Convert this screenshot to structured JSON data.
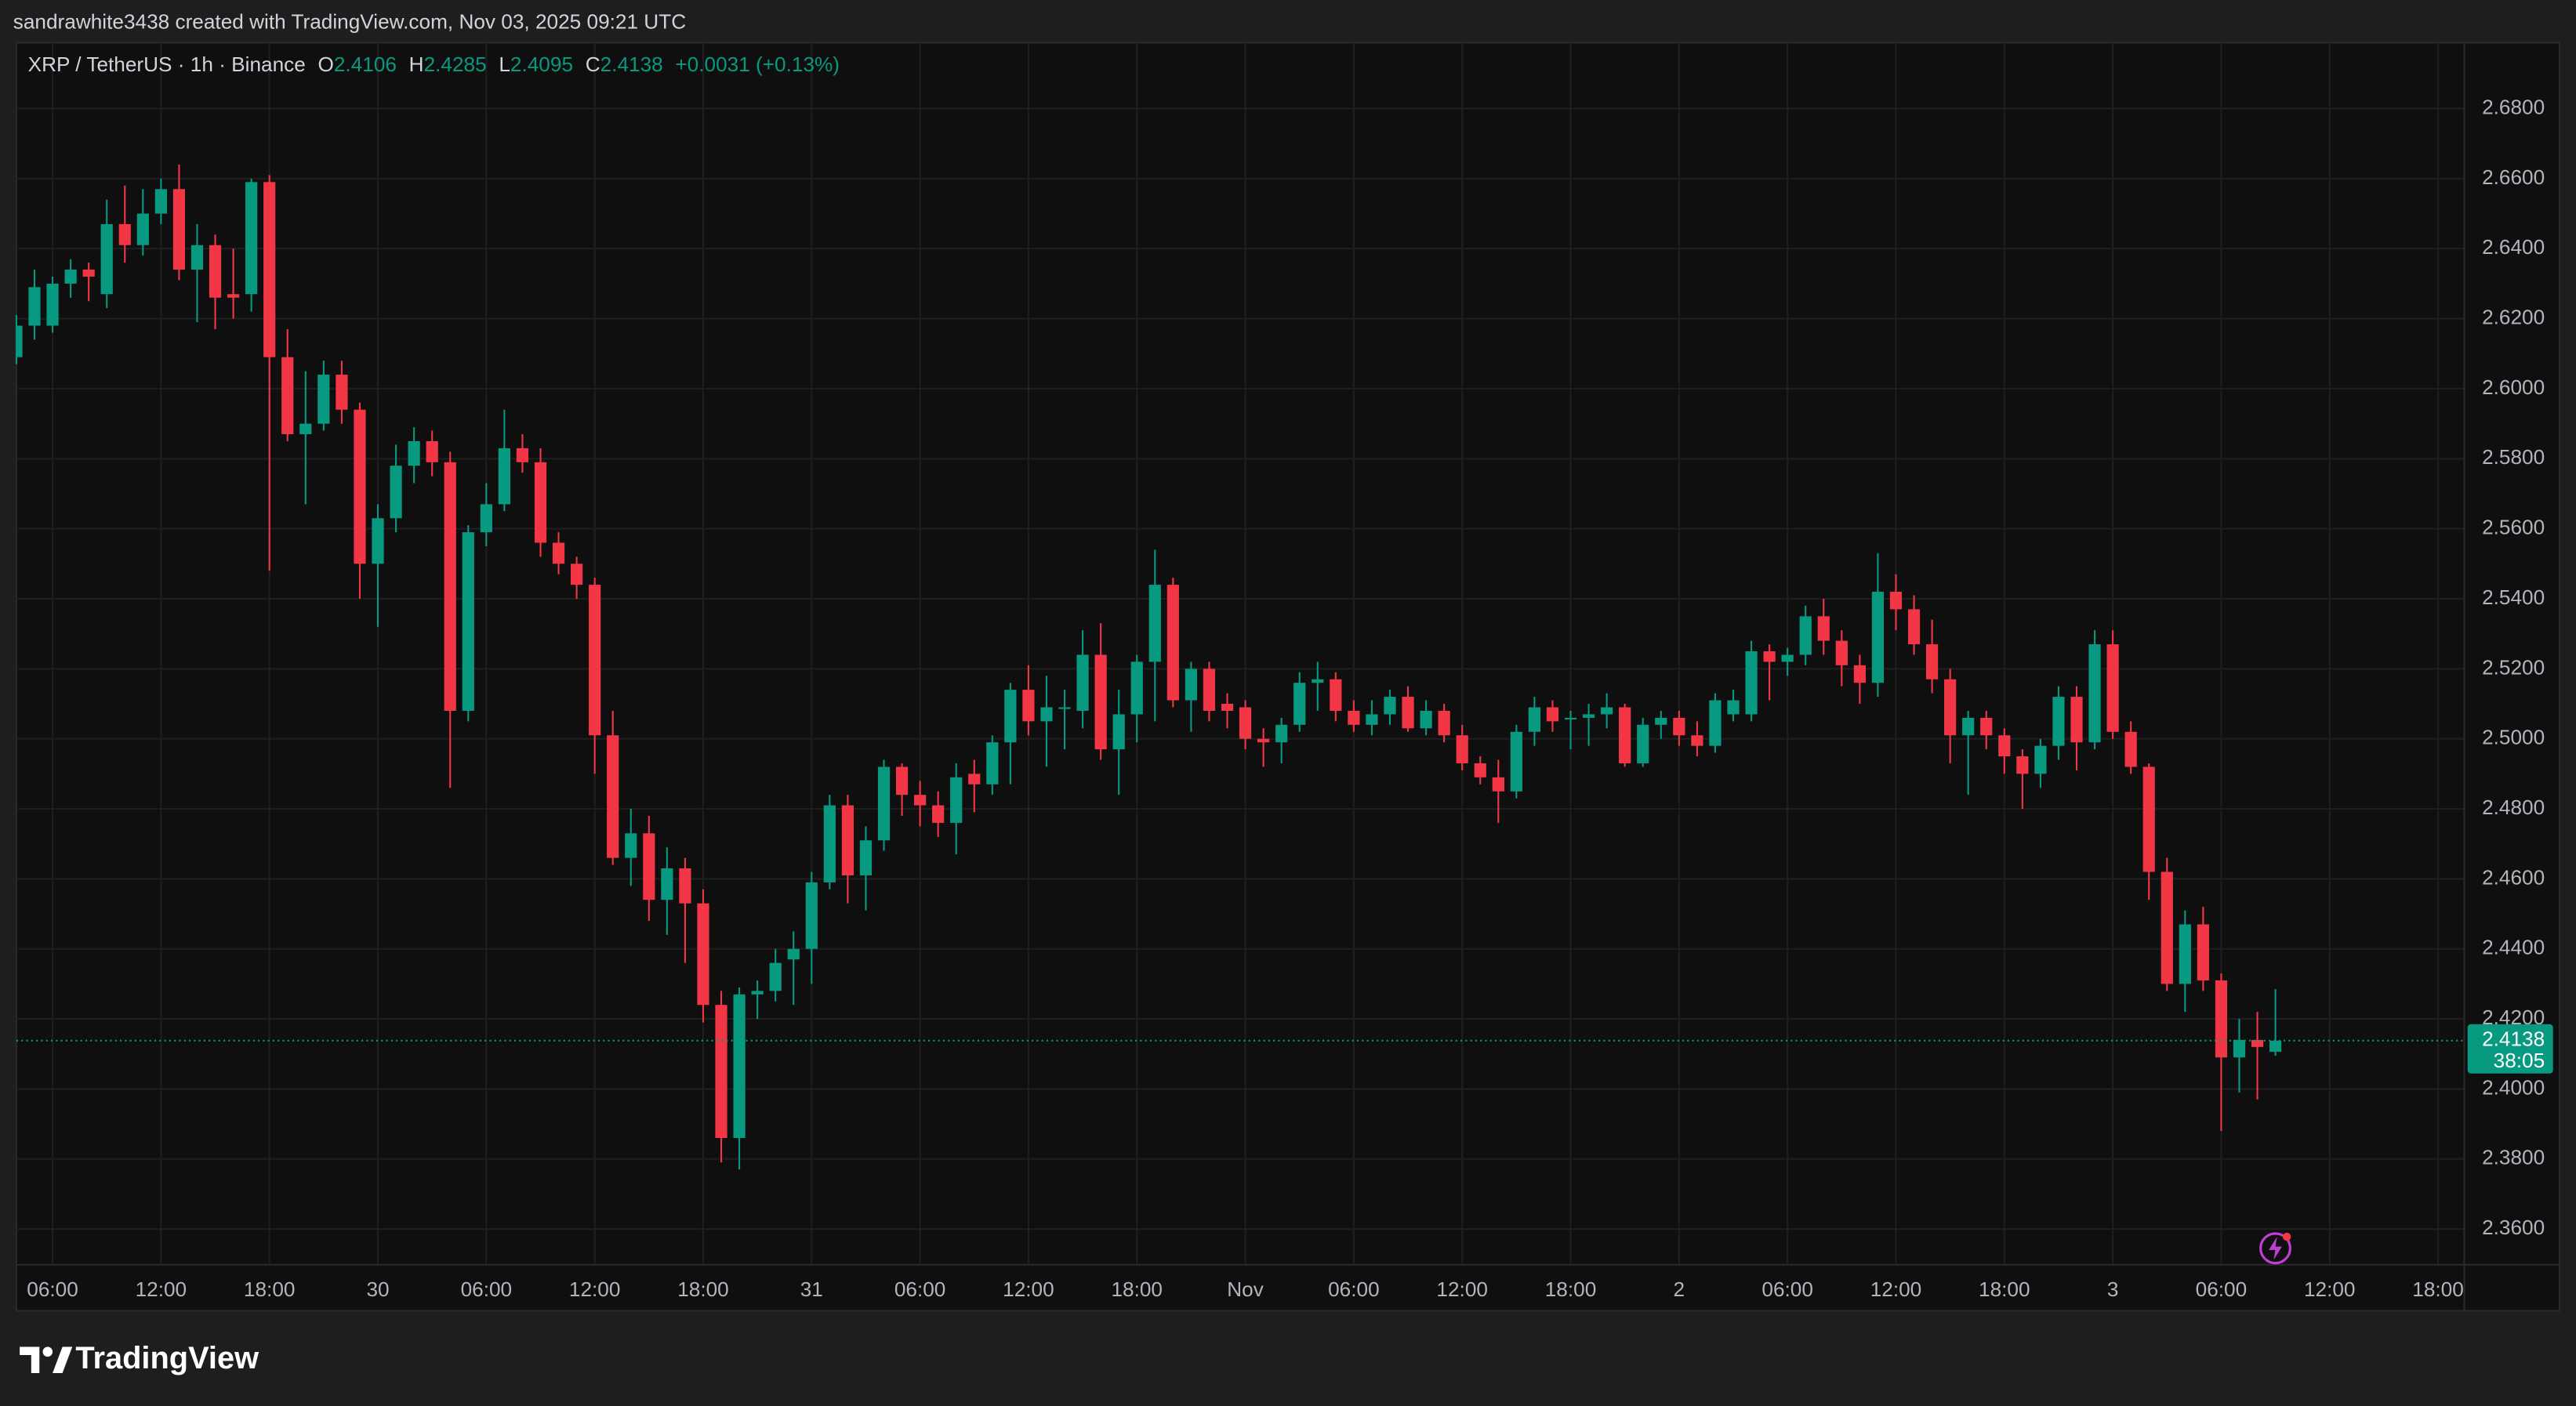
{
  "header": {
    "credit": "sandrawhite3438 created with TradingView.com, Nov 03, 2025 09:21 UTC",
    "logo": "TradingView"
  },
  "chart_data": {
    "type": "candlestick",
    "symbol": "XRP / TetherUS · 1h · Binance",
    "ohlc_keys": [
      "O",
      "H",
      "L",
      "C"
    ],
    "change": "+0.0031 (+0.13%)",
    "countdown": "38:05",
    "up_color": "#089981",
    "down_color": "#f23645",
    "grid": true,
    "x": [
      0,
      1,
      2,
      3,
      4,
      5,
      6,
      7,
      8,
      9,
      10,
      11,
      12,
      13,
      14,
      15,
      16,
      17,
      18,
      19,
      20,
      21,
      22,
      23,
      24,
      25,
      26,
      27,
      28,
      29,
      30,
      31,
      32,
      33,
      34,
      35,
      36,
      37,
      38,
      39,
      40,
      41,
      42,
      43,
      44,
      45,
      46,
      47,
      48,
      49,
      50,
      51,
      52,
      53,
      54,
      55,
      56,
      57,
      58,
      59,
      60,
      61,
      62,
      63,
      64,
      65,
      66,
      67,
      68,
      69,
      70,
      71,
      72,
      73,
      74,
      75,
      76,
      77,
      78,
      79,
      80,
      81,
      82,
      83,
      84,
      85,
      86,
      87,
      88,
      89,
      90,
      91,
      92,
      93,
      94,
      95,
      96,
      97,
      98,
      99,
      100,
      101,
      102,
      103,
      104,
      105,
      106,
      107,
      108,
      109,
      110,
      111,
      112,
      113,
      114,
      115,
      116,
      117,
      118,
      119,
      120,
      121,
      122,
      123,
      124,
      125
    ],
    "open": [
      2.609,
      2.618,
      2.618,
      2.63,
      2.634,
      2.627,
      2.647,
      2.641,
      2.65,
      2.657,
      2.634,
      2.641,
      2.627,
      2.627,
      2.659,
      2.609,
      2.587,
      2.59,
      2.604,
      2.594,
      2.55,
      2.563,
      2.578,
      2.585,
      2.579,
      2.508,
      2.559,
      2.567,
      2.583,
      2.579,
      2.556,
      2.55,
      2.544,
      2.501,
      2.466,
      2.473,
      2.454,
      2.463,
      2.453,
      2.424,
      2.386,
      2.427,
      2.428,
      2.437,
      2.44,
      2.459,
      2.481,
      2.461,
      2.471,
      2.492,
      2.484,
      2.481,
      2.476,
      2.49,
      2.487,
      2.499,
      2.514,
      2.505,
      2.509,
      2.508,
      2.524,
      2.497,
      2.507,
      2.522,
      2.544,
      2.511,
      2.52,
      2.51,
      2.509,
      2.5,
      2.499,
      2.504,
      2.516,
      2.517,
      2.508,
      2.504,
      2.507,
      2.512,
      2.503,
      2.508,
      2.501,
      2.493,
      2.489,
      2.485,
      2.502,
      2.509,
      2.506,
      2.506,
      2.507,
      2.509,
      2.493,
      2.504,
      2.506,
      2.501,
      2.498,
      2.507,
      2.507,
      2.525,
      2.522,
      2.524,
      2.535,
      2.528,
      2.521,
      2.516,
      2.542,
      2.537,
      2.527,
      2.517,
      2.501,
      2.506,
      2.501,
      2.495,
      2.49,
      2.498,
      2.512,
      2.499,
      2.527,
      2.502,
      2.492,
      2.462,
      2.43,
      2.447,
      2.431,
      2.409,
      2.414,
      2.4106
    ],
    "high": [
      2.621,
      2.634,
      2.632,
      2.637,
      2.636,
      2.654,
      2.658,
      2.657,
      2.66,
      2.664,
      2.647,
      2.644,
      2.64,
      2.66,
      2.661,
      2.617,
      2.605,
      2.608,
      2.608,
      2.596,
      2.567,
      2.584,
      2.589,
      2.588,
      2.582,
      2.561,
      2.573,
      2.594,
      2.587,
      2.583,
      2.559,
      2.552,
      2.546,
      2.508,
      2.48,
      2.478,
      2.469,
      2.466,
      2.457,
      2.428,
      2.429,
      2.431,
      2.44,
      2.445,
      2.462,
      2.484,
      2.484,
      2.475,
      2.494,
      2.493,
      2.488,
      2.485,
      2.493,
      2.494,
      2.501,
      2.516,
      2.521,
      2.518,
      2.514,
      2.531,
      2.533,
      2.514,
      2.524,
      2.554,
      2.546,
      2.522,
      2.522,
      2.513,
      2.511,
      2.503,
      2.506,
      2.519,
      2.522,
      2.519,
      2.511,
      2.511,
      2.514,
      2.515,
      2.511,
      2.51,
      2.504,
      2.495,
      2.494,
      2.504,
      2.512,
      2.511,
      2.508,
      2.51,
      2.513,
      2.51,
      2.506,
      2.508,
      2.508,
      2.505,
      2.513,
      2.514,
      2.528,
      2.527,
      2.526,
      2.538,
      2.54,
      2.531,
      2.524,
      2.553,
      2.547,
      2.541,
      2.534,
      2.52,
      2.508,
      2.508,
      2.503,
      2.497,
      2.5,
      2.515,
      2.515,
      2.531,
      2.531,
      2.505,
      2.493,
      2.466,
      2.451,
      2.452,
      2.433,
      2.42,
      2.422,
      2.4285
    ],
    "low": [
      2.607,
      2.614,
      2.616,
      2.626,
      2.625,
      2.623,
      2.636,
      2.638,
      2.647,
      2.631,
      2.619,
      2.617,
      2.62,
      2.622,
      2.548,
      2.585,
      2.567,
      2.588,
      2.59,
      2.54,
      2.532,
      2.559,
      2.573,
      2.575,
      2.486,
      2.505,
      2.555,
      2.565,
      2.576,
      2.552,
      2.547,
      2.54,
      2.49,
      2.464,
      2.458,
      2.448,
      2.444,
      2.436,
      2.419,
      2.379,
      2.377,
      2.42,
      2.425,
      2.424,
      2.43,
      2.457,
      2.453,
      2.451,
      2.468,
      2.478,
      2.475,
      2.472,
      2.467,
      2.479,
      2.484,
      2.487,
      2.501,
      2.492,
      2.497,
      2.503,
      2.494,
      2.484,
      2.499,
      2.505,
      2.509,
      2.502,
      2.505,
      2.503,
      2.497,
      2.492,
      2.493,
      2.502,
      2.508,
      2.505,
      2.502,
      2.501,
      2.504,
      2.502,
      2.501,
      2.499,
      2.491,
      2.487,
      2.476,
      2.483,
      2.498,
      2.502,
      2.497,
      2.498,
      2.503,
      2.492,
      2.492,
      2.5,
      2.498,
      2.495,
      2.496,
      2.505,
      2.505,
      2.511,
      2.518,
      2.521,
      2.524,
      2.515,
      2.51,
      2.512,
      2.531,
      2.524,
      2.513,
      2.493,
      2.484,
      2.497,
      2.49,
      2.48,
      2.486,
      2.494,
      2.491,
      2.497,
      2.5,
      2.49,
      2.454,
      2.428,
      2.422,
      2.428,
      2.388,
      2.399,
      2.397,
      2.4095
    ],
    "close": [
      2.618,
      2.629,
      2.63,
      2.634,
      2.632,
      2.647,
      2.641,
      2.65,
      2.657,
      2.634,
      2.641,
      2.626,
      2.626,
      2.659,
      2.609,
      2.587,
      2.59,
      2.604,
      2.594,
      2.55,
      2.563,
      2.578,
      2.585,
      2.579,
      2.508,
      2.559,
      2.567,
      2.583,
      2.579,
      2.556,
      2.55,
      2.544,
      2.501,
      2.466,
      2.473,
      2.454,
      2.463,
      2.453,
      2.424,
      2.386,
      2.427,
      2.428,
      2.436,
      2.44,
      2.459,
      2.481,
      2.461,
      2.471,
      2.492,
      2.484,
      2.481,
      2.476,
      2.489,
      2.487,
      2.499,
      2.514,
      2.505,
      2.509,
      2.509,
      2.524,
      2.497,
      2.507,
      2.522,
      2.544,
      2.511,
      2.52,
      2.508,
      2.508,
      2.5,
      2.499,
      2.504,
      2.516,
      2.517,
      2.508,
      2.504,
      2.507,
      2.512,
      2.503,
      2.508,
      2.501,
      2.493,
      2.489,
      2.485,
      2.502,
      2.509,
      2.505,
      2.506,
      2.507,
      2.509,
      2.493,
      2.504,
      2.506,
      2.501,
      2.498,
      2.511,
      2.511,
      2.525,
      2.522,
      2.524,
      2.535,
      2.528,
      2.521,
      2.516,
      2.542,
      2.537,
      2.527,
      2.517,
      2.501,
      2.506,
      2.501,
      2.495,
      2.49,
      2.498,
      2.512,
      2.499,
      2.527,
      2.502,
      2.492,
      2.462,
      2.43,
      2.447,
      2.431,
      2.409,
      2.414,
      2.412,
      2.4138
    ],
    "xlim": [
      0,
      135.45
    ],
    "xticks": [
      {
        "value": 2,
        "label": "06:00"
      },
      {
        "value": 8,
        "label": "12:00"
      },
      {
        "value": 14,
        "label": "18:00"
      },
      {
        "value": 20,
        "label": "30"
      },
      {
        "value": 26,
        "label": "06:00"
      },
      {
        "value": 32,
        "label": "12:00"
      },
      {
        "value": 38,
        "label": "18:00"
      },
      {
        "value": 44,
        "label": "31"
      },
      {
        "value": 50,
        "label": "06:00"
      },
      {
        "value": 56,
        "label": "12:00"
      },
      {
        "value": 62,
        "label": "18:00"
      },
      {
        "value": 68,
        "label": "Nov"
      },
      {
        "value": 74,
        "label": "06:00"
      },
      {
        "value": 80,
        "label": "12:00"
      },
      {
        "value": 86,
        "label": "18:00"
      },
      {
        "value": 92,
        "label": "2"
      },
      {
        "value": 98,
        "label": "06:00"
      },
      {
        "value": 104,
        "label": "12:00"
      },
      {
        "value": 110,
        "label": "18:00"
      },
      {
        "value": 116,
        "label": "3"
      },
      {
        "value": 122,
        "label": "06:00"
      },
      {
        "value": 128,
        "label": "12:00"
      },
      {
        "value": 134,
        "label": "18:00"
      }
    ],
    "ylim": [
      2.3498,
      2.6988
    ],
    "yticks": [
      {
        "value": 2.36,
        "label": "2.3600"
      },
      {
        "value": 2.38,
        "label": "2.3800"
      },
      {
        "value": 2.4,
        "label": "2.4000"
      },
      {
        "value": 2.42,
        "label": "2.4200"
      },
      {
        "value": 2.44,
        "label": "2.4400"
      },
      {
        "value": 2.46,
        "label": "2.4600"
      },
      {
        "value": 2.48,
        "label": "2.4800"
      },
      {
        "value": 2.5,
        "label": "2.5000"
      },
      {
        "value": 2.52,
        "label": "2.5200"
      },
      {
        "value": 2.54,
        "label": "2.5400"
      },
      {
        "value": 2.56,
        "label": "2.5600"
      },
      {
        "value": 2.58,
        "label": "2.5800"
      },
      {
        "value": 2.6,
        "label": "2.6000"
      },
      {
        "value": 2.62,
        "label": "2.6200"
      },
      {
        "value": 2.64,
        "label": "2.6400"
      },
      {
        "value": 2.66,
        "label": "2.6600"
      },
      {
        "value": 2.68,
        "label": "2.6800"
      }
    ]
  }
}
